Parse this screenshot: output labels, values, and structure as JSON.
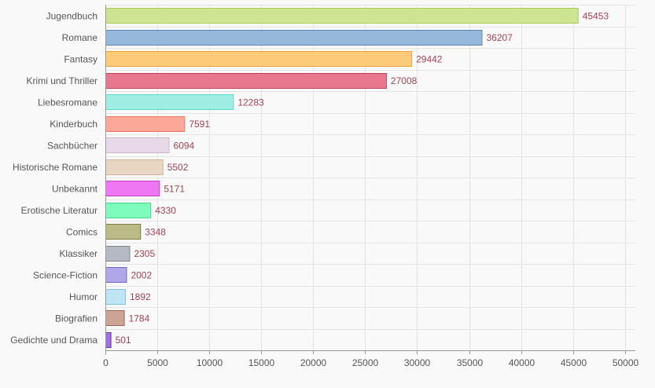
{
  "chart_data": {
    "type": "bar",
    "orientation": "horizontal",
    "categories": [
      "Jugendbuch",
      "Romane",
      "Fantasy",
      "Krimi und Thriller",
      "Liebesromane",
      "Kinderbuch",
      "Sachbücher",
      "Historische Romane",
      "Unbekannt",
      "Erotische Literatur",
      "Comics",
      "Klassiker",
      "Science-Fiction",
      "Humor",
      "Biografien",
      "Gedichte und Drama"
    ],
    "values": [
      45453,
      36207,
      29442,
      27008,
      12283,
      7591,
      6094,
      5502,
      5171,
      4330,
      3348,
      2305,
      2002,
      1892,
      1784,
      501
    ],
    "value_labels": [
      "45453",
      "36207",
      "29442",
      "27008",
      "12283",
      "7591",
      "6094",
      "5502",
      "5171",
      "4330",
      "3348",
      "2305",
      "2002",
      "1892",
      "1784",
      "501"
    ],
    "fill_colors": [
      "#cde593",
      "#96b8da",
      "#fdca7a",
      "#e8788d",
      "#9eeee4",
      "#fca899",
      "#e8d9e8",
      "#e8d5c2",
      "#f077f3",
      "#7dfcbd",
      "#bbbb87",
      "#b4bac2",
      "#b0a7e9",
      "#bfe4f4",
      "#cca493",
      "#a36ee0"
    ],
    "stroke_colors": [
      "#a9cc5e",
      "#5b88b5",
      "#eea434",
      "#c83c5a",
      "#5fd8cb",
      "#ef7866",
      "#ccb6cc",
      "#ccb49c",
      "#c03fc4",
      "#41d68f",
      "#7c7c43",
      "#7e8792",
      "#7166c8",
      "#82c3df",
      "#9b6656",
      "#6d34b4"
    ],
    "label_color": "#a24354",
    "title": "",
    "xlabel": "",
    "ylabel": "",
    "xlim": [
      0,
      51000
    ],
    "xticks": [
      0,
      5000,
      10000,
      15000,
      20000,
      25000,
      30000,
      35000,
      40000,
      45000,
      50000
    ],
    "xtick_labels": [
      "0",
      "5000",
      "10000",
      "15000",
      "20000",
      "25000",
      "30000",
      "35000",
      "40000",
      "45000",
      "50000"
    ],
    "grid": true,
    "legend": false
  }
}
